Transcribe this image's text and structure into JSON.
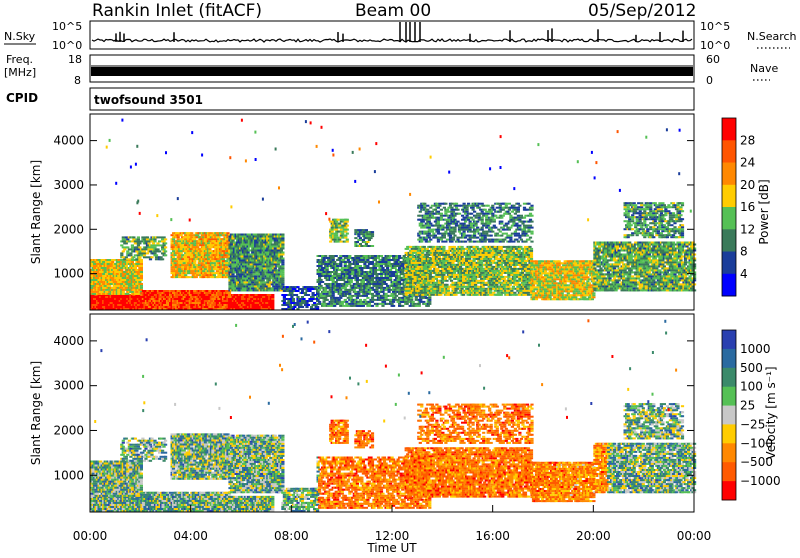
{
  "header": {
    "station": "Rankin Inlet (fitACF)",
    "beam": "Beam 00",
    "date": "05/Sep/2012"
  },
  "panels": {
    "nsky_label": "N.Sky",
    "nsearch_label": "N.Search",
    "freq_label_line1": "Freq.",
    "freq_label_line2": "[MHz]",
    "nave_label": "Nave",
    "cpid_label": "CPID",
    "cpid_value": "twofsound 3501"
  },
  "chart_data": [
    {
      "type": "line",
      "name": "noise",
      "left_ticks": [
        "10^5",
        "10^0"
      ],
      "right_ticks": [
        "10^5",
        "10^0"
      ],
      "series": [
        {
          "name": "N.Sky",
          "color": "#000000"
        },
        {
          "name": "N.Search",
          "color": "#000000"
        }
      ]
    },
    {
      "type": "line",
      "name": "frequency",
      "left_ticks": [
        "18",
        "8"
      ],
      "right_ticks": [
        "60",
        "0"
      ],
      "series": [
        {
          "name": "Freq.",
          "color": "#000000"
        },
        {
          "name": "Nave",
          "color": "#000000"
        }
      ]
    },
    {
      "type": "heatmap",
      "name": "power",
      "xlabel": "",
      "ylabel": "Slant Range [km]",
      "xlim": [
        0,
        24
      ],
      "ylim": [
        180,
        4600
      ],
      "yticks": [
        1000,
        2000,
        3000,
        4000
      ],
      "colorbar": {
        "label": "Power [dB]",
        "ticks": [
          "4",
          "8",
          "12",
          "16",
          "20",
          "24",
          "28"
        ],
        "colors": [
          "#0000ff",
          "#1a3d9a",
          "#3a7a5a",
          "#55c055",
          "#ffcc00",
          "#ff8800",
          "#ff5500",
          "#ff0000"
        ]
      }
    },
    {
      "type": "heatmap",
      "name": "velocity",
      "xlabel": "Time UT",
      "ylabel": "Slant Range [km]",
      "xlim": [
        0,
        24
      ],
      "ylim": [
        180,
        4600
      ],
      "yticks": [
        1000,
        2000,
        3000,
        4000
      ],
      "xticks": [
        "00:00",
        "04:00",
        "08:00",
        "12:00",
        "16:00",
        "20:00",
        "00:00"
      ],
      "colorbar": {
        "label": "Velocity [m s⁻¹]",
        "ticks": [
          "1000",
          "500",
          "100",
          "25",
          "−25",
          "−100",
          "−500",
          "−1000"
        ],
        "colors": [
          "#2a40b0",
          "#2a6aa0",
          "#3b8a6a",
          "#55c055",
          "#c8c8c8",
          "#ffcc00",
          "#ff8800",
          "#ff5a00",
          "#ff0000"
        ]
      }
    }
  ]
}
